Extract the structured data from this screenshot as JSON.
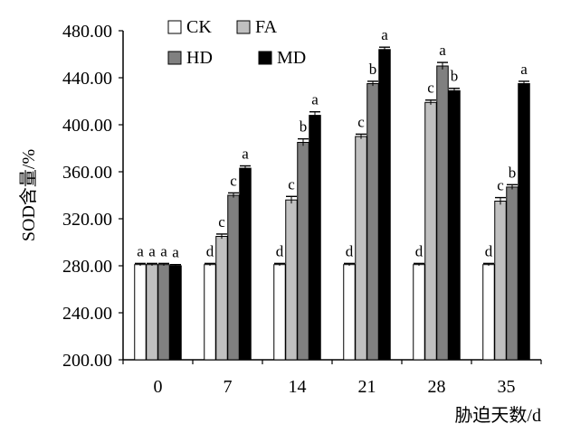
{
  "chart_data": {
    "type": "bar",
    "title": "",
    "xlabel": "胁迫天数/d",
    "ylabel": "SOD含量/%",
    "ylim": [
      200,
      480
    ],
    "yticks": [
      "200.00",
      "240.00",
      "280.00",
      "320.00",
      "360.00",
      "400.00",
      "440.00",
      "480.00"
    ],
    "categories": [
      "0",
      "7",
      "14",
      "21",
      "28",
      "35"
    ],
    "legend_position": "top-left",
    "grid": false,
    "series": [
      {
        "name": "CK",
        "color": "#ffffff",
        "values": [
          281,
          281,
          281,
          281,
          281,
          281
        ],
        "errors": [
          1,
          1,
          1,
          1,
          1,
          1
        ],
        "labels": [
          "a",
          "d",
          "d",
          "d",
          "d",
          "d"
        ]
      },
      {
        "name": "FA",
        "color": "#c0c0c0",
        "values": [
          281,
          305,
          336,
          390,
          419,
          335
        ],
        "errors": [
          1,
          2,
          3,
          2,
          2,
          3
        ],
        "labels": [
          "a",
          "c",
          "c",
          "c",
          "c",
          "c"
        ]
      },
      {
        "name": "HD",
        "color": "#808080",
        "values": [
          281,
          340,
          385,
          435,
          450,
          347
        ],
        "errors": [
          1,
          2,
          3,
          2,
          3,
          2
        ],
        "labels": [
          "a",
          "c",
          "b",
          "b",
          "a",
          "b"
        ]
      },
      {
        "name": "MD",
        "color": "#000000",
        "values": [
          280,
          363,
          408,
          464,
          429,
          435
        ],
        "errors": [
          1,
          2,
          3,
          2,
          2,
          2
        ],
        "labels": [
          "a",
          "a",
          "a",
          "a",
          "b",
          "a"
        ]
      }
    ]
  }
}
